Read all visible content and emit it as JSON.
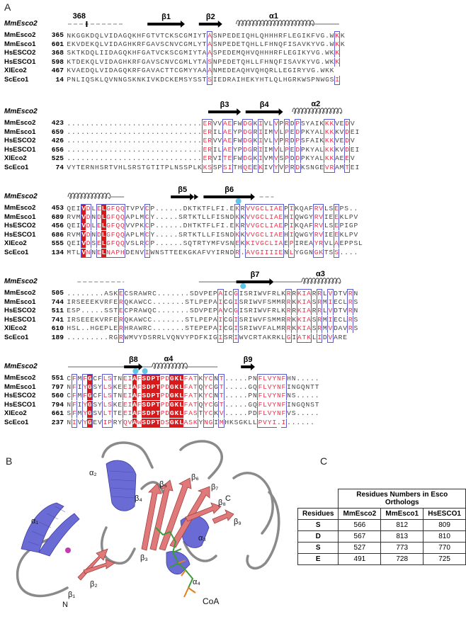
{
  "panels": {
    "a": "A",
    "b": "B",
    "c": "C"
  },
  "colors": {
    "identical": "#d7191c",
    "similar": "#e8324a",
    "box": "#5b5bd0",
    "helix": "#6b6bd6",
    "strand": "#e07a7a",
    "coil": "#8a8a8a",
    "coa": "#3a9a3a",
    "cyan": "#5fc4e8"
  },
  "alignment": {
    "ref_label": "MmEsco2",
    "blocks": [
      {
        "ss": {
          "marker_368": "368",
          "labels": [
            "β1",
            "β2",
            "α1"
          ]
        },
        "rows": [
          {
            "name": "MmEsco2",
            "num": "365",
            "seq": "NKGGKDQLVIDAGQKHFGTVTCKSCGMIYTASNPEDEIQHLQHHHRFLEGIKFVG.WKK"
          },
          {
            "name": "MmEsco1",
            "num": "601",
            "seq": "EKVDEKQLVIDAGHKRFGAVSCNVCGMLYTASNPEDETQHLLFHNQFISAVKYVG.WKK"
          },
          {
            "name": "HsESCO2",
            "num": "368",
            "seq": "SKTKDQLIIDAGQKHFGATVCKSCGMIYTAASPEDEMQHVQHHHRFLEGIKYVG.WKK"
          },
          {
            "name": "HsESCO1",
            "num": "598",
            "seq": "KTDEKQLVIDAGHKRFGAVSCNVCGMLYTASNPEDETQHLLFHNQFISAVKYVG.WKK"
          },
          {
            "name": "XlEco2",
            "num": "467",
            "seq": "KVAEDQLVIDAGQKRFGAVACTTCGMYYAAANMEDEAQHVQHQRLLEGIRYVG.WKK"
          },
          {
            "name": "ScEco1",
            "num": "14",
            "seq": "PNLIQSKLQVNNGSKNKIVKDCKEMSYSSTSIEDRAIHEKYHTLQLHGRKWSPNWGSI"
          }
        ]
      },
      {
        "ss": {
          "labels": [
            "β3",
            "β4",
            "α2"
          ]
        },
        "rows": [
          {
            "name": "MmEsco2",
            "num": "423",
            "seq": ".............................ERVVAEFWDGKIVLVPRDPSYAIKKKVEDV"
          },
          {
            "name": "MmEsco1",
            "num": "659",
            "seq": ".............................ERILAEYPDGRIIMVLPEDPKYALKKKVDEI"
          },
          {
            "name": "HsESCO2",
            "num": "426",
            "seq": ".............................ERVVAEFWDGKIVLVPRDPSFAIKKKVEDV"
          },
          {
            "name": "HsESCO1",
            "num": "656",
            "seq": ".............................ERILAEYPDGRIIMVLPEDPKYALKKKVDEI"
          },
          {
            "name": "XlEco2",
            "num": "525",
            "seq": ".............................ERVITEFWDGKIVMVSPDDPKYALKKAEEV"
          },
          {
            "name": "ScEco1",
            "num": "74",
            "seq": "VYTERNHSRTVHLSRSTGTITPLNSSPLKKSSPSITHQEEKIVYVPRDKSNGEVRAMTEI"
          }
        ]
      },
      {
        "ss": {
          "labels": [
            "β5",
            "β6"
          ]
        },
        "rows": [
          {
            "name": "MmEsco2",
            "num": "453",
            "seq": "QEIVDLELGFQQTVPVCP......DKTKTFLFI.EKRVVGCLIAEPIKQAFRVLSEPS.."
          },
          {
            "name": "MmEsco1",
            "num": "689",
            "seq": "RVMVDNDLGFQQAPLMCY.....SRTKTLLFISNDKKVVGCLIAEHIQWGYRVIEEKLPV"
          },
          {
            "name": "HsESCO2",
            "num": "456",
            "seq": "QEIVDLELGFQQVVPKCP......DHTKTFLFI.EKRVVGCLIAEPIKQAFRVLSEPIGP"
          },
          {
            "name": "HsESCO1",
            "num": "686",
            "seq": "RVMVDNDLGFQQAPLMCY.....SRTKTLLFISNDKKVVGCLIAEHIQWGYRVIEEKLPV"
          },
          {
            "name": "XlEco2",
            "num": "555",
            "seq": "QEIVDSELGFQQVSLRCP......SQTRTYMFVSNEKKIVGCLIAEPIREAYRVLAEPPSL"
          },
          {
            "name": "ScEco1",
            "num": "134",
            "seq": "MTLVNNELNAPHDENVIWNSTTEEKGKAFVYIRNDR.AVGIIIIENLYGGNGKTSS...."
          }
        ]
      },
      {
        "ss": {
          "labels": [
            "β7",
            "α3"
          ]
        },
        "rows": [
          {
            "name": "MmEsco2",
            "num": "505",
            "seq": "........ASKECSRAWRC.......SDVPEPAICGISRIWVFRLKRRKIARRLVDTVRN"
          },
          {
            "name": "MmEsco1",
            "num": "744",
            "seq": "IRSEEEKVRFERQKAWCC.......STLPEPAICGISRIWVFSMMRRKKIASRMIECLRS"
          },
          {
            "name": "HsESCO2",
            "num": "511",
            "seq": "ESP.....SSTECPRAWQC.......SDVPEPAVCGISRIWVFRLKRRKIARRLVDTVRN"
          },
          {
            "name": "HsESCO1",
            "num": "741",
            "seq": "IRSEEEKVRFERQKAWCC.......STLPEPAICGISRIWVFSMMRRKKIASRMIECLRS"
          },
          {
            "name": "XlEco2",
            "num": "610",
            "seq": "HSL..HGEPLERHRAWRC.......STEPEPAICGISRIWVFALMRRKKIASRMVDAVRS"
          },
          {
            "name": "ScEco1",
            "num": "189",
            "seq": ".........RGRWMVYDSRRLVQNVYPDFKIGISRIWVCRTAKRKLGIATKLIDVARE"
          }
        ]
      },
      {
        "ss": {
          "labels": [
            "β8",
            "α4",
            "β9"
          ]
        },
        "rows": [
          {
            "name": "MmEsco2",
            "num": "551",
            "seq": "CFMFGCFLSTNEIAFSDPTPDGKLFATKYCNT.....PNFLVYNFHN....."
          },
          {
            "name": "MmEsco1",
            "num": "797",
            "seq": "NFIYGSYLSKEEIAFSDPTPDGKLFATQYCGT.....GQFLVYNFINGQNTT"
          },
          {
            "name": "HsESCO2",
            "num": "560",
            "seq": "CFMFGCFLSTNEIAFSDPTPDGKLFATKYCNT.....PNFLVYNFNS....."
          },
          {
            "name": "HsESCO1",
            "num": "794",
            "seq": "NFIYGSYLSKEEIAFSDPTPDGKLFATQYCGT.....GQFLVYNFINGQNST"
          },
          {
            "name": "XlEco2",
            "num": "661",
            "seq": "SFMYGSVLTTEEIAFSDPTPDGKLFASTYCKV.....PDFLVYNFVS....."
          },
          {
            "name": "ScEco1",
            "num": "237",
            "seq": "NIVYGEVIPRYQVAWSDPTDSGKLASKYNGIMHKSGKLLPVYI.I......"
          }
        ]
      }
    ]
  },
  "structure": {
    "labels": {
      "a1": "α₁",
      "a2": "α₂",
      "a3": "α₃",
      "a4": "α₄",
      "b1": "β₁",
      "b2": "β₂",
      "b3": "β₃",
      "b4": "β₄",
      "b5": "β₅",
      "b6": "β₆",
      "b7": "β₇",
      "b8": "β₈",
      "b9": "β₉",
      "n": "N",
      "c": "C",
      "coa": "CoA"
    }
  },
  "table": {
    "title": "Residues Numbers in Esco Orthologs",
    "headers": [
      "Residues",
      "MmEsco2",
      "MmEsco1",
      "HsESCO1"
    ],
    "rows": [
      [
        "S",
        "566",
        "812",
        "809"
      ],
      [
        "D",
        "567",
        "813",
        "810"
      ],
      [
        "S",
        "527",
        "773",
        "770"
      ],
      [
        "E",
        "491",
        "728",
        "725"
      ]
    ]
  }
}
